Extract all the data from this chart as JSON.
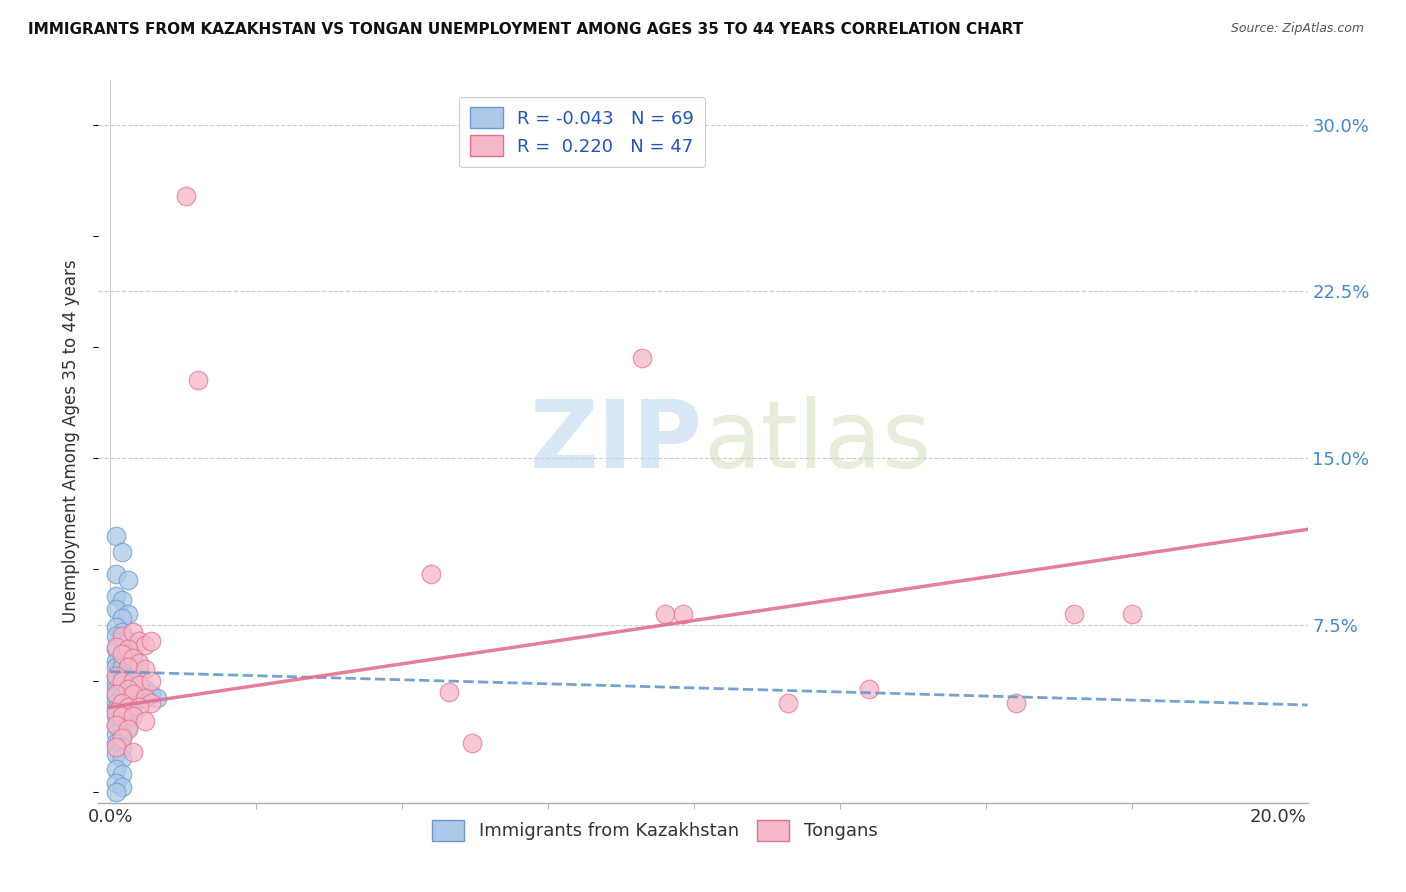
{
  "title": "IMMIGRANTS FROM KAZAKHSTAN VS TONGAN UNEMPLOYMENT AMONG AGES 35 TO 44 YEARS CORRELATION CHART",
  "source": "Source: ZipAtlas.com",
  "ylabel": "Unemployment Among Ages 35 to 44 years",
  "xlim": [
    -0.002,
    0.205
  ],
  "ylim": [
    -0.005,
    0.32
  ],
  "xticks_minor": [
    0.025,
    0.05,
    0.075,
    0.1,
    0.125,
    0.15,
    0.175
  ],
  "xticks_labeled": [
    0.0,
    0.2
  ],
  "xticklabels_labeled": [
    "0.0%",
    "20.0%"
  ],
  "yticks_right": [
    0.075,
    0.15,
    0.225,
    0.3
  ],
  "yticklabels_right": [
    "7.5%",
    "15.0%",
    "22.5%",
    "30.0%"
  ],
  "watermark_zip": "ZIP",
  "watermark_atlas": "atlas",
  "legend_r_kaz": "-0.043",
  "legend_n_kaz": "69",
  "legend_r_ton": "0.220",
  "legend_n_ton": "47",
  "blue_color": "#adc8e8",
  "blue_edge": "#6699cc",
  "pink_color": "#f5b8c8",
  "pink_edge": "#e07090",
  "blue_scatter": [
    [
      0.001,
      0.115
    ],
    [
      0.002,
      0.108
    ],
    [
      0.001,
      0.098
    ],
    [
      0.003,
      0.095
    ],
    [
      0.001,
      0.088
    ],
    [
      0.002,
      0.086
    ],
    [
      0.001,
      0.082
    ],
    [
      0.003,
      0.08
    ],
    [
      0.002,
      0.078
    ],
    [
      0.001,
      0.074
    ],
    [
      0.002,
      0.072
    ],
    [
      0.001,
      0.07
    ],
    [
      0.002,
      0.068
    ],
    [
      0.003,
      0.068
    ],
    [
      0.001,
      0.064
    ],
    [
      0.002,
      0.063
    ],
    [
      0.003,
      0.062
    ],
    [
      0.004,
      0.062
    ],
    [
      0.001,
      0.059
    ],
    [
      0.002,
      0.059
    ],
    [
      0.003,
      0.058
    ],
    [
      0.001,
      0.056
    ],
    [
      0.002,
      0.056
    ],
    [
      0.003,
      0.055
    ],
    [
      0.004,
      0.055
    ],
    [
      0.005,
      0.055
    ],
    [
      0.001,
      0.052
    ],
    [
      0.002,
      0.052
    ],
    [
      0.003,
      0.051
    ],
    [
      0.004,
      0.051
    ],
    [
      0.001,
      0.049
    ],
    [
      0.002,
      0.048
    ],
    [
      0.003,
      0.048
    ],
    [
      0.004,
      0.047
    ],
    [
      0.001,
      0.046
    ],
    [
      0.002,
      0.045
    ],
    [
      0.003,
      0.045
    ],
    [
      0.001,
      0.043
    ],
    [
      0.002,
      0.043
    ],
    [
      0.003,
      0.042
    ],
    [
      0.004,
      0.042
    ],
    [
      0.005,
      0.042
    ],
    [
      0.001,
      0.04
    ],
    [
      0.002,
      0.04
    ],
    [
      0.003,
      0.039
    ],
    [
      0.004,
      0.039
    ],
    [
      0.001,
      0.037
    ],
    [
      0.002,
      0.036
    ],
    [
      0.003,
      0.036
    ],
    [
      0.001,
      0.034
    ],
    [
      0.002,
      0.033
    ],
    [
      0.003,
      0.033
    ],
    [
      0.001,
      0.03
    ],
    [
      0.002,
      0.03
    ],
    [
      0.003,
      0.029
    ],
    [
      0.001,
      0.026
    ],
    [
      0.002,
      0.025
    ],
    [
      0.001,
      0.022
    ],
    [
      0.002,
      0.02
    ],
    [
      0.001,
      0.017
    ],
    [
      0.002,
      0.015
    ],
    [
      0.001,
      0.01
    ],
    [
      0.002,
      0.008
    ],
    [
      0.001,
      0.004
    ],
    [
      0.002,
      0.002
    ],
    [
      0.001,
      0.0
    ],
    [
      0.006,
      0.046
    ],
    [
      0.007,
      0.044
    ],
    [
      0.008,
      0.042
    ]
  ],
  "pink_scatter": [
    [
      0.013,
      0.268
    ],
    [
      0.015,
      0.185
    ],
    [
      0.002,
      0.07
    ],
    [
      0.004,
      0.072
    ],
    [
      0.005,
      0.068
    ],
    [
      0.006,
      0.066
    ],
    [
      0.001,
      0.065
    ],
    [
      0.003,
      0.064
    ],
    [
      0.007,
      0.068
    ],
    [
      0.002,
      0.062
    ],
    [
      0.004,
      0.06
    ],
    [
      0.005,
      0.058
    ],
    [
      0.003,
      0.056
    ],
    [
      0.006,
      0.055
    ],
    [
      0.001,
      0.052
    ],
    [
      0.002,
      0.05
    ],
    [
      0.004,
      0.05
    ],
    [
      0.005,
      0.048
    ],
    [
      0.007,
      0.05
    ],
    [
      0.003,
      0.046
    ],
    [
      0.001,
      0.044
    ],
    [
      0.004,
      0.044
    ],
    [
      0.006,
      0.042
    ],
    [
      0.002,
      0.04
    ],
    [
      0.007,
      0.04
    ],
    [
      0.003,
      0.038
    ],
    [
      0.005,
      0.038
    ],
    [
      0.001,
      0.036
    ],
    [
      0.002,
      0.034
    ],
    [
      0.004,
      0.034
    ],
    [
      0.006,
      0.032
    ],
    [
      0.001,
      0.03
    ],
    [
      0.003,
      0.028
    ],
    [
      0.002,
      0.024
    ],
    [
      0.001,
      0.02
    ],
    [
      0.004,
      0.018
    ],
    [
      0.055,
      0.098
    ],
    [
      0.058,
      0.045
    ],
    [
      0.062,
      0.022
    ],
    [
      0.091,
      0.195
    ],
    [
      0.095,
      0.08
    ],
    [
      0.098,
      0.08
    ],
    [
      0.116,
      0.04
    ],
    [
      0.13,
      0.046
    ],
    [
      0.155,
      0.04
    ],
    [
      0.165,
      0.08
    ],
    [
      0.175,
      0.08
    ]
  ],
  "blue_trend": [
    0.0,
    0.205,
    0.054,
    0.039
  ],
  "pink_trend": [
    0.0,
    0.205,
    0.038,
    0.118
  ]
}
